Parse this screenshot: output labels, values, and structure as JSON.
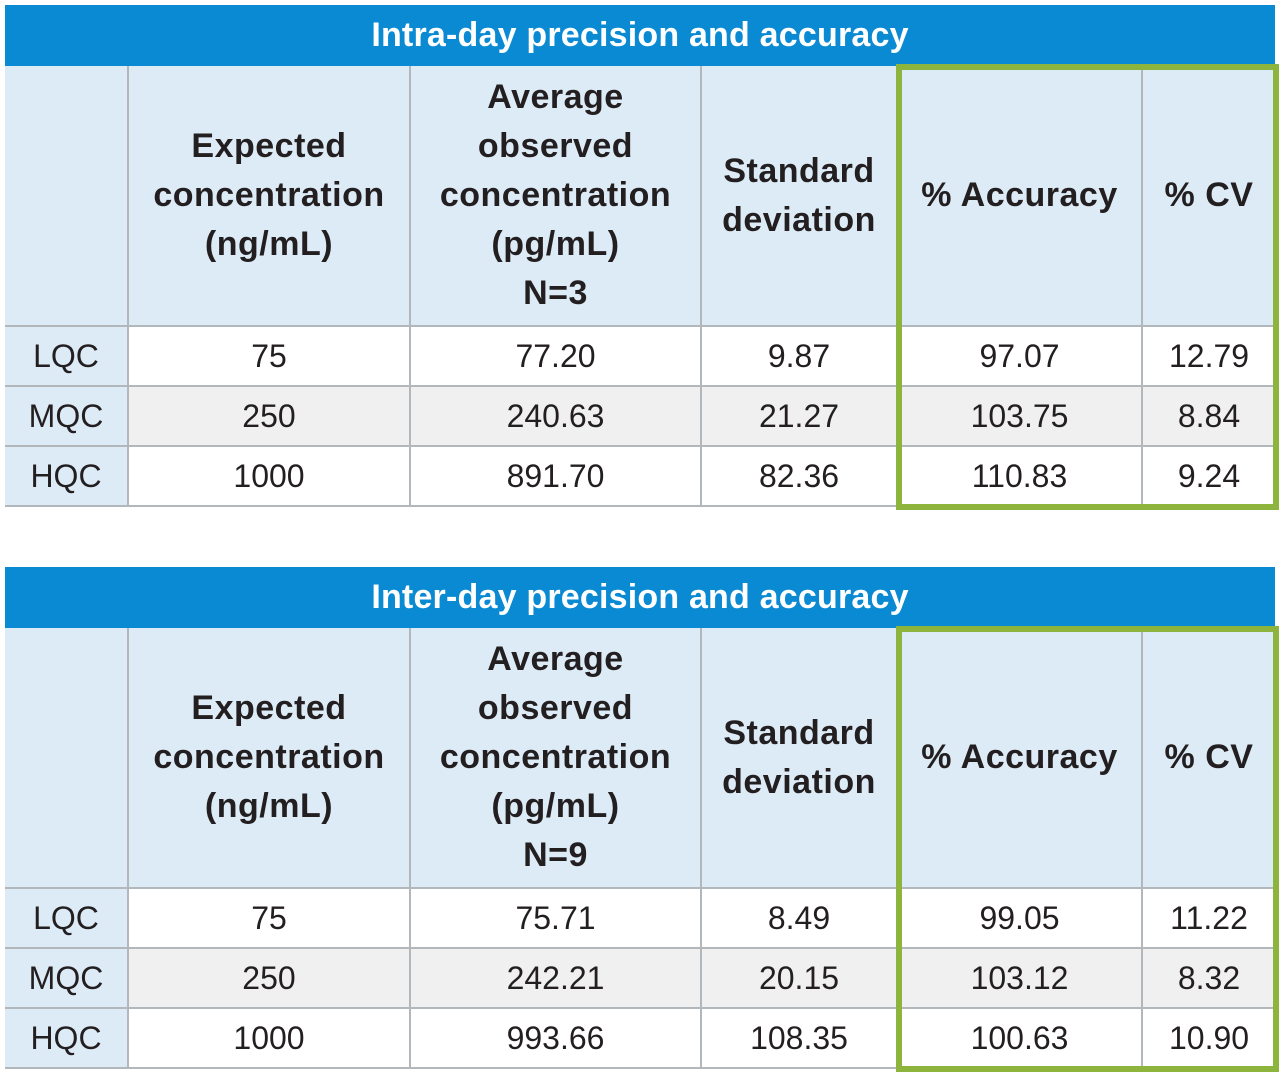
{
  "tables": [
    {
      "title": "Intra-day precision and accuracy",
      "headers": {
        "expected": [
          "Expected",
          "concentration",
          "(ng/mL)"
        ],
        "average": [
          "Average",
          "observed",
          "concentration",
          "(pg/mL)",
          "N=3"
        ],
        "std": [
          "Standard",
          "deviation"
        ],
        "accuracy": "% Accuracy",
        "cv": "% CV"
      },
      "rows": [
        {
          "label": "LQC",
          "expected": "75",
          "average": "77.20",
          "std": "9.87",
          "accuracy": "97.07",
          "cv": "12.79"
        },
        {
          "label": "MQC",
          "expected": "250",
          "average": "240.63",
          "std": "21.27",
          "accuracy": "103.75",
          "cv": "8.84"
        },
        {
          "label": "HQC",
          "expected": "1000",
          "average": "891.70",
          "std": "82.36",
          "accuracy": "110.83",
          "cv": "9.24"
        }
      ]
    },
    {
      "title": "Inter-day precision and accuracy",
      "headers": {
        "expected": [
          "Expected",
          "concentration",
          "(ng/mL)"
        ],
        "average": [
          "Average",
          "observed",
          "concentration",
          "(pg/mL)",
          "N=9"
        ],
        "std": [
          "Standard",
          "deviation"
        ],
        "accuracy": "% Accuracy",
        "cv": "% CV"
      },
      "rows": [
        {
          "label": "LQC",
          "expected": "75",
          "average": "75.71",
          "std": "8.49",
          "accuracy": "99.05",
          "cv": "11.22"
        },
        {
          "label": "MQC",
          "expected": "250",
          "average": "242.21",
          "std": "20.15",
          "accuracy": "103.12",
          "cv": "8.32"
        },
        {
          "label": "HQC",
          "expected": "1000",
          "average": "993.66",
          "std": "108.35",
          "accuracy": "100.63",
          "cv": "10.90"
        }
      ]
    }
  ],
  "colors": {
    "title_bar": "#0a8ad3",
    "header_fill": "#ddebf7",
    "highlight_border": "#8db43d",
    "alt_row_fill": "#f0f0f0"
  }
}
